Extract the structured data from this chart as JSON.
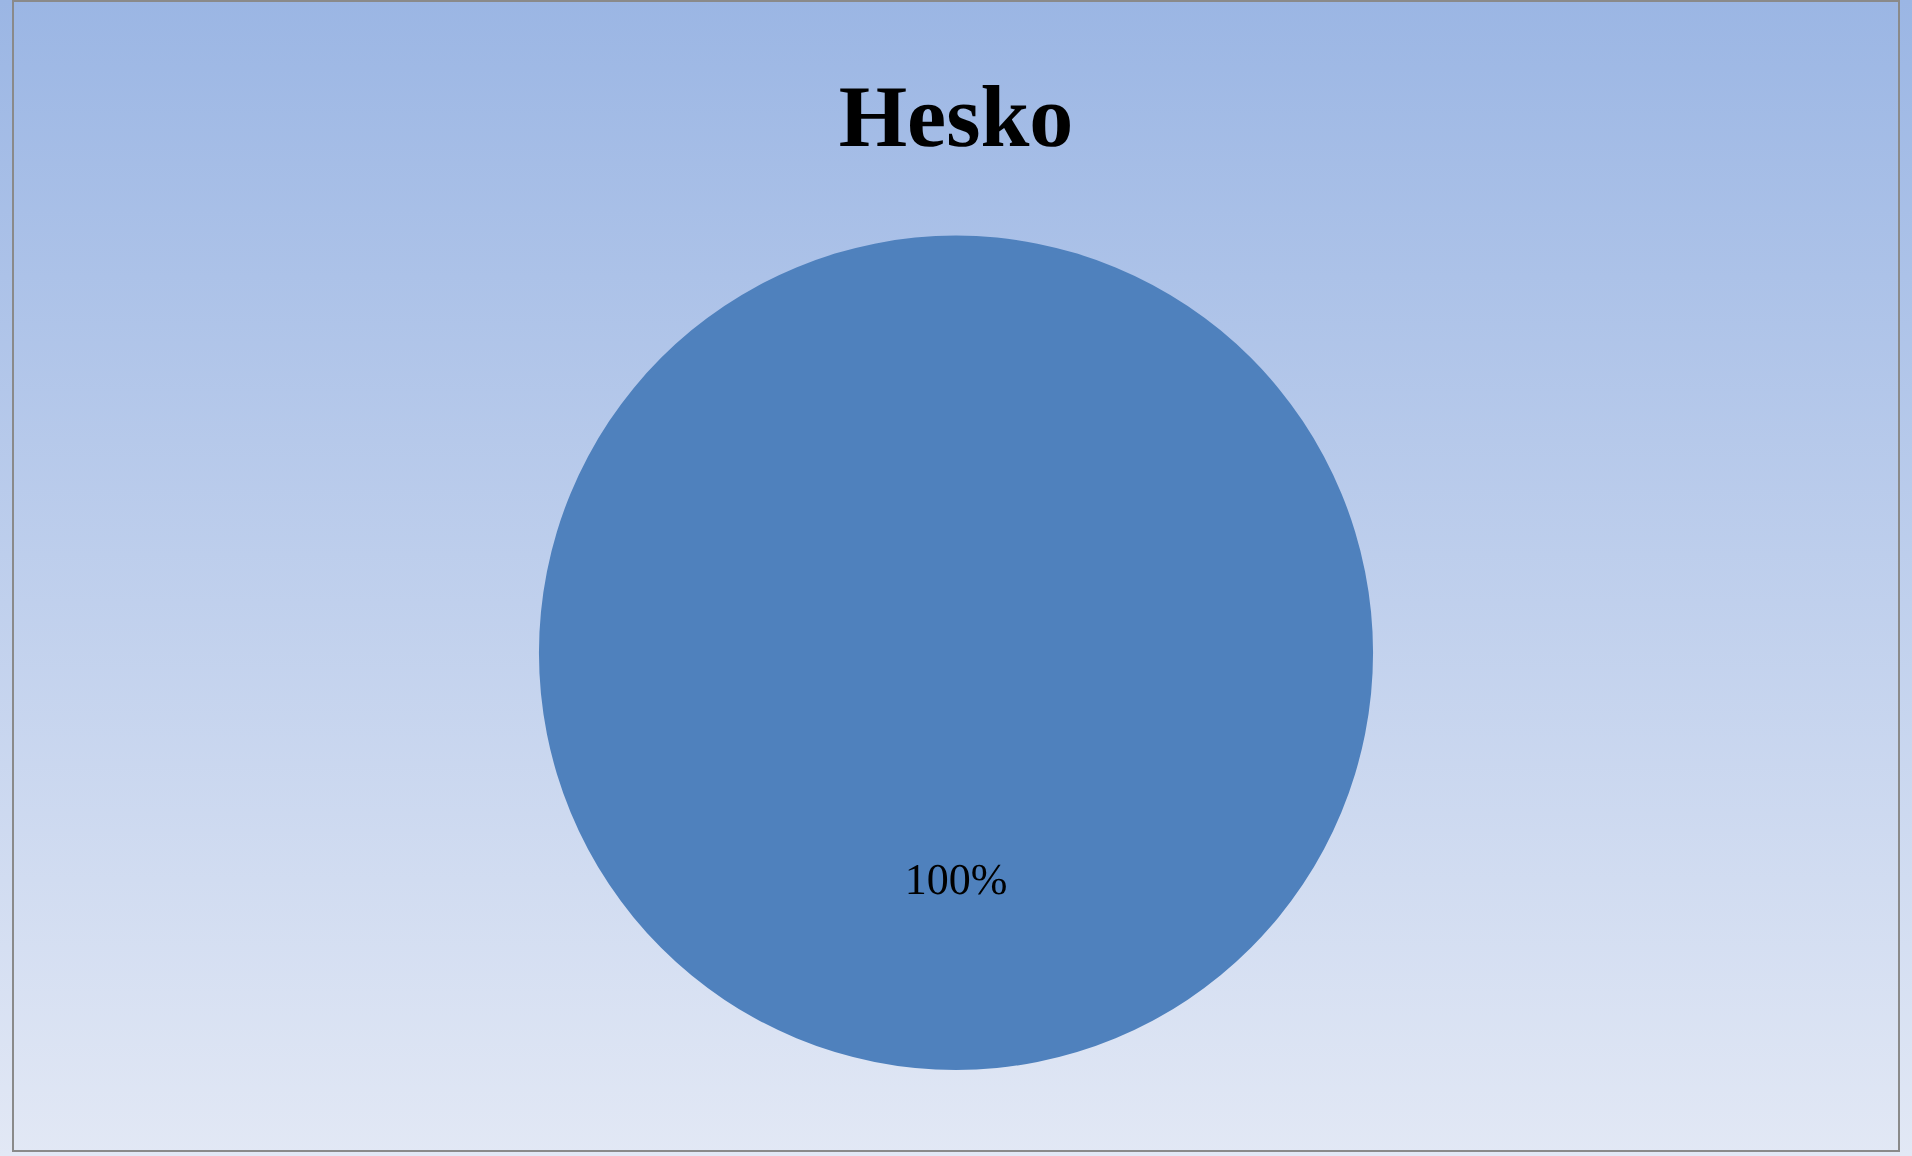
{
  "chart_data": {
    "type": "pie",
    "title": "Hesko",
    "categories": [
      null
    ],
    "values": [
      100
    ],
    "colors": [
      "#4f81bd"
    ],
    "value_labels": [
      "100%"
    ],
    "legend": false
  }
}
